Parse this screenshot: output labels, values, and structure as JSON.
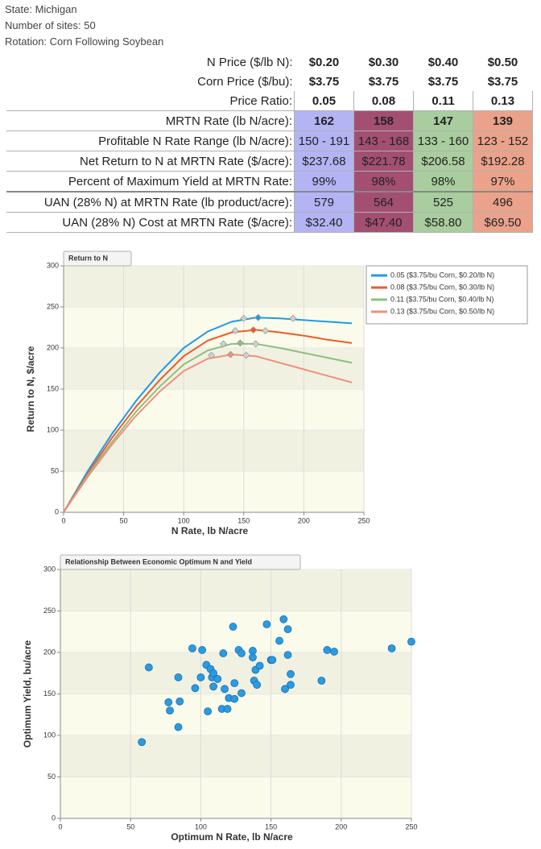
{
  "header": {
    "lines": [
      "State: Michigan",
      "Number of sites: 50",
      "Rotation: Corn Following Soybean"
    ]
  },
  "table": {
    "column_colors": [
      "#b4b4f4",
      "#a24f71",
      "#a9cd9f",
      "#eba28a"
    ],
    "rows": [
      [
        "N Price ($/lb N):",
        "$0.20",
        "$0.30",
        "$0.40",
        "$0.50"
      ],
      [
        "Corn Price ($/bu):",
        "$3.75",
        "$3.75",
        "$3.75",
        "$3.75"
      ],
      [
        "Price Ratio:",
        "0.05",
        "0.08",
        "0.11",
        "0.13"
      ],
      [
        "MRTN Rate (lb N/acre):",
        "162",
        "158",
        "147",
        "139"
      ],
      [
        "Profitable N Rate Range (lb N/acre):",
        "150 - 191",
        "143 - 168",
        "133 - 160",
        "123 - 152"
      ],
      [
        "Net Return to N at MRTN Rate ($/acre):",
        "$237.68",
        "$221.78",
        "$206.58",
        "$192.28"
      ],
      [
        "Percent of Maximum Yield at MRTN Rate:",
        "99%",
        "98%",
        "98%",
        "97%"
      ],
      [
        "UAN (28% N) at MRTN Rate (lb product/acre):",
        "579",
        "564",
        "525",
        "496"
      ],
      [
        "UAN (28% N) Cost at MRTN Rate ($/acre):",
        "$32.40",
        "$47.40",
        "$58.80",
        "$69.50"
      ]
    ]
  },
  "chart_data": [
    {
      "type": "line",
      "title": "Return to N",
      "x_label": "N Rate, lb N/acre",
      "y_label": "Return to N, $/acre",
      "xlim": [
        0,
        250
      ],
      "ylim": [
        0,
        300
      ],
      "xticks": [
        0,
        50,
        100,
        150,
        200,
        250
      ],
      "yticks": [
        0,
        50,
        100,
        150,
        200,
        250,
        300
      ],
      "grid": true,
      "legend": "right",
      "x": [
        0,
        20,
        40,
        60,
        80,
        100,
        120,
        140,
        160,
        180,
        200,
        220,
        240
      ],
      "series": [
        {
          "name": "0.05 ($3.75/bu Corn, $0.20/lb N)",
          "color": "#1e9be6",
          "values": [
            0,
            50,
            95,
            135,
            170,
            200,
            220,
            232,
            237,
            236,
            234,
            232,
            230
          ],
          "markers": {
            "x": [
              150,
              162,
              191
            ],
            "y": [
              236,
              237,
              236
            ]
          }
        },
        {
          "name": "0.08 ($3.75/bu Corn, $0.30/lb N)",
          "color": "#f05a28",
          "values": [
            0,
            47,
            90,
            128,
            161,
            190,
            209,
            219,
            222,
            219,
            215,
            210,
            206
          ],
          "markers": {
            "x": [
              143,
              158,
              168
            ],
            "y": [
              221,
              222,
              221
            ]
          }
        },
        {
          "name": "0.11 ($3.75/bu Corn, $0.40/lb N)",
          "color": "#8cbf80",
          "values": [
            0,
            45,
            85,
            122,
            153,
            180,
            197,
            205,
            205,
            200,
            194,
            188,
            182
          ],
          "markers": {
            "x": [
              133,
              147,
              160
            ],
            "y": [
              205,
              206,
              205
            ]
          }
        },
        {
          "name": "0.13 ($3.75/bu Corn, $0.50/lb N)",
          "color": "#f0907a",
          "values": [
            0,
            43,
            82,
            117,
            147,
            172,
            187,
            192,
            190,
            182,
            174,
            166,
            158
          ],
          "markers": {
            "x": [
              123,
              139,
              152
            ],
            "y": [
              191,
              192,
              191
            ]
          }
        }
      ]
    },
    {
      "type": "scatter",
      "title": "Relationship Between Economic Optimum N and Yield",
      "x_label": "Optimum N Rate, lb N/acre",
      "y_label": "Optimum Yield, bu/acre",
      "xlim": [
        0,
        250
      ],
      "ylim": [
        0,
        300
      ],
      "xticks": [
        0,
        50,
        100,
        150,
        200,
        250
      ],
      "yticks": [
        0,
        50,
        100,
        150,
        200,
        250,
        300
      ],
      "grid": true,
      "color": "#2b9be0",
      "x": [
        58,
        63,
        77,
        78,
        84,
        85,
        84,
        94,
        96,
        100,
        101,
        104,
        105,
        107,
        108,
        109,
        109,
        116,
        115,
        117,
        119,
        120,
        123,
        124,
        124,
        127,
        129,
        129,
        137,
        137,
        138,
        139,
        140,
        142,
        147,
        150,
        151,
        156,
        159,
        160,
        162,
        162,
        164,
        164,
        186,
        190,
        195,
        236,
        250,
        112
      ],
      "values": [
        92,
        182,
        140,
        130,
        170,
        141,
        110,
        205,
        157,
        170,
        203,
        185,
        129,
        180,
        170,
        175,
        159,
        199,
        132,
        156,
        132,
        145,
        231,
        144,
        163,
        203,
        199,
        151,
        202,
        194,
        166,
        179,
        161,
        184,
        234,
        191,
        191,
        214,
        240,
        156,
        197,
        228,
        174,
        161,
        166,
        203,
        201,
        205,
        213,
        168
      ]
    }
  ]
}
